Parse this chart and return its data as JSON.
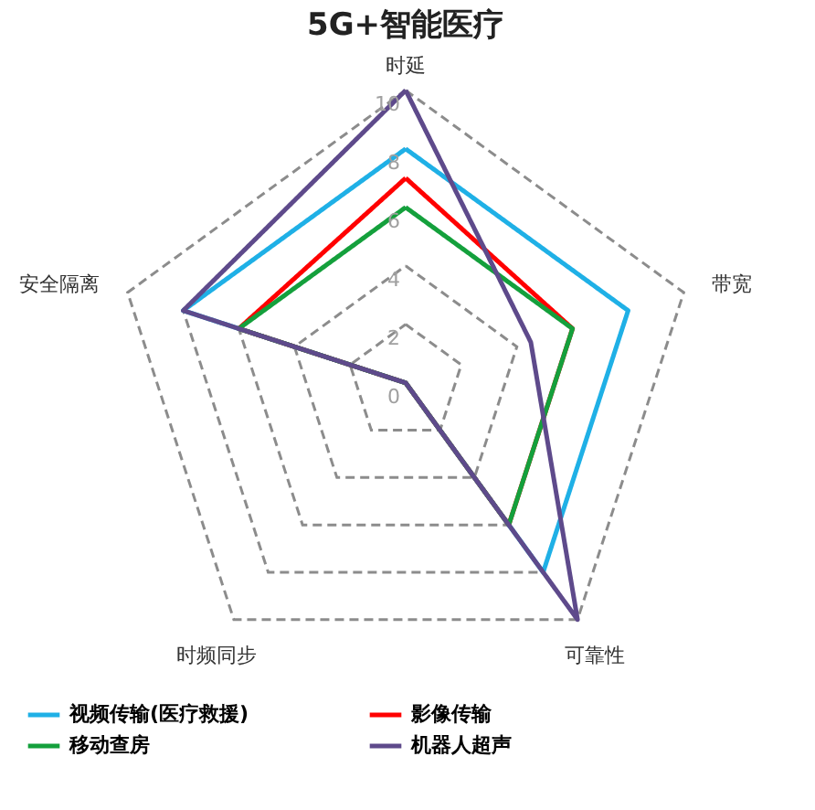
{
  "chart_data": {
    "type": "radar",
    "title": "5G+智能医疗",
    "categories": [
      "时延",
      "带宽",
      "可靠性",
      "时频同步",
      "安全隔离"
    ],
    "series": [
      {
        "name": "视频传输(医疗救援)",
        "color": "#1fb0e6",
        "values": [
          8,
          8,
          8,
          0,
          8
        ]
      },
      {
        "name": "影像传输",
        "color": "#ff0000",
        "values": [
          7,
          6,
          6,
          0,
          6
        ]
      },
      {
        "name": "移动查房",
        "color": "#14a03c",
        "values": [
          6,
          6,
          6,
          0,
          6
        ]
      },
      {
        "name": "机器人超声",
        "color": "#5e4a8b",
        "values": [
          10,
          4.5,
          10,
          0,
          8
        ]
      }
    ],
    "ylim": [
      0,
      10
    ],
    "yticks": [
      0,
      2,
      4,
      6,
      8,
      10
    ],
    "grid": true,
    "legend": "bottom",
    "line_style": "solid",
    "marker": "none"
  }
}
